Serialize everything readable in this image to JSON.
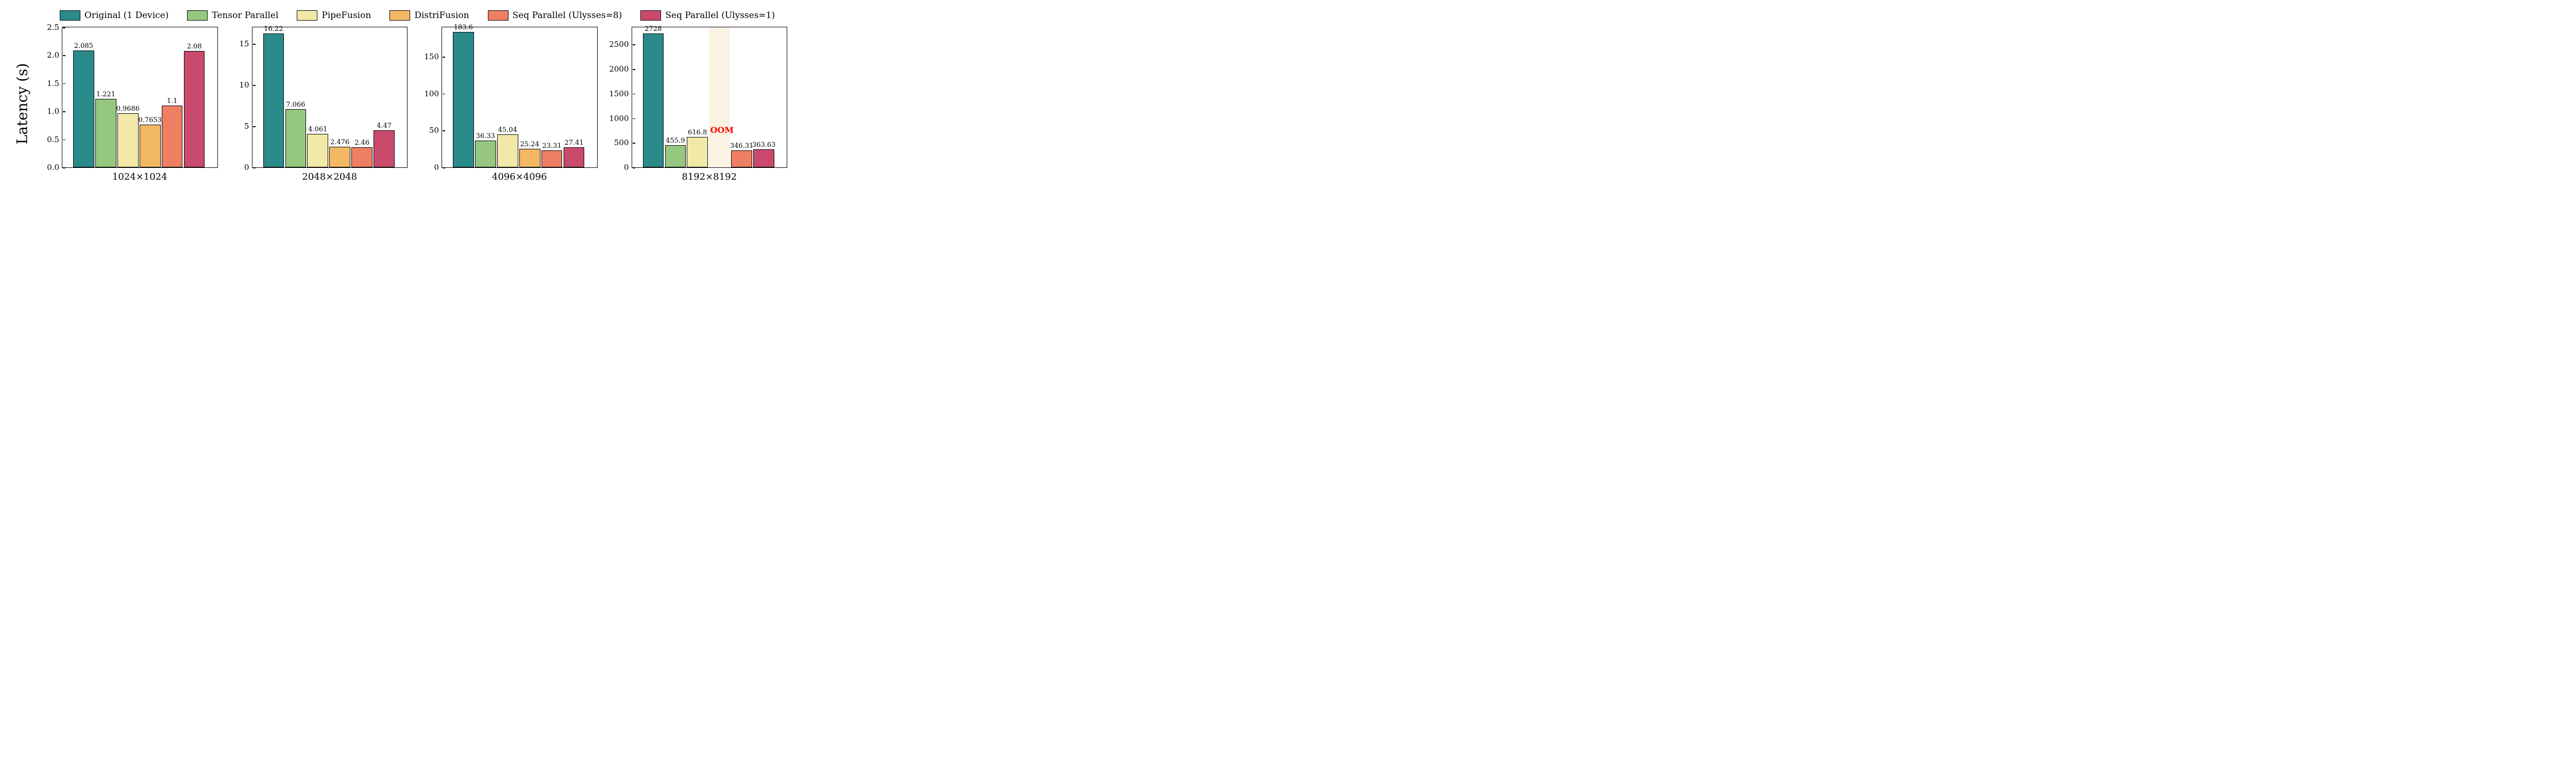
{
  "ylabel": "Latency (s)",
  "legend": [
    {
      "label": "Original (1 Device)",
      "color": "#2b8a8a"
    },
    {
      "label": "Tensor Parallel",
      "color": "#95c77e"
    },
    {
      "label": "PipeFusion",
      "color": "#f2e8a8"
    },
    {
      "label": "DistriFusion",
      "color": "#f3b864"
    },
    {
      "label": "Seq Parallel (Ulysses=8)",
      "color": "#ee7f63"
    },
    {
      "label": "Seq Parallel (Ulysses=1)",
      "color": "#c94a6d"
    }
  ],
  "bar_style": {
    "count": 6,
    "width_pct": 13.5,
    "gap_pct": 0.8,
    "left_margin_pct": 7.0
  },
  "oom_color": "#ff0000",
  "oom_band_color": "#faf3e3",
  "panels": [
    {
      "xlabel": "1024×1024",
      "ymax": 2.5,
      "yticks": [
        0.0,
        0.5,
        1.0,
        1.5,
        2.0,
        2.5
      ],
      "ytick_labels": [
        "0.0",
        "0.5",
        "1.0",
        "1.5",
        "2.0",
        "2.5"
      ],
      "bars": [
        {
          "value": 2.085,
          "label": "2.085"
        },
        {
          "value": 1.221,
          "label": "1.221"
        },
        {
          "value": 0.9686,
          "label": "0.9686"
        },
        {
          "value": 0.7653,
          "label": "0.7653"
        },
        {
          "value": 1.1,
          "label": "1.1"
        },
        {
          "value": 2.08,
          "label": "2.08"
        }
      ]
    },
    {
      "xlabel": "2048×2048",
      "ymax": 17,
      "yticks": [
        0,
        5,
        10,
        15
      ],
      "ytick_labels": [
        "0",
        "5",
        "10",
        "15"
      ],
      "bars": [
        {
          "value": 16.22,
          "label": "16.22"
        },
        {
          "value": 7.066,
          "label": "7.066"
        },
        {
          "value": 4.061,
          "label": "4.061"
        },
        {
          "value": 2.476,
          "label": "2.476"
        },
        {
          "value": 2.46,
          "label": "2.46"
        },
        {
          "value": 4.47,
          "label": "4.47"
        }
      ]
    },
    {
      "xlabel": "4096×4096",
      "ymax": 190,
      "yticks": [
        0,
        50,
        100,
        150
      ],
      "ytick_labels": [
        "0",
        "50",
        "100",
        "150"
      ],
      "bars": [
        {
          "value": 183.6,
          "label": "183.6"
        },
        {
          "value": 36.33,
          "label": "36.33"
        },
        {
          "value": 45.04,
          "label": "45.04"
        },
        {
          "value": 25.24,
          "label": "25.24"
        },
        {
          "value": 23.31,
          "label": "23.31"
        },
        {
          "value": 27.41,
          "label": "27.41"
        }
      ]
    },
    {
      "xlabel": "8192×8192",
      "ymax": 2850,
      "yticks": [
        0,
        500,
        1000,
        1500,
        2000,
        2500
      ],
      "ytick_labels": [
        "0",
        "500",
        "1000",
        "1500",
        "2000",
        "2500"
      ],
      "bars": [
        {
          "value": 2728,
          "label": "2728"
        },
        {
          "value": 455.9,
          "label": "455.9"
        },
        {
          "value": 616.8,
          "label": "616.8"
        },
        {
          "value": null,
          "label": "OOM",
          "oom": true
        },
        {
          "value": 346.31,
          "label": "346.31"
        },
        {
          "value": 363.63,
          "label": "363.63"
        }
      ]
    }
  ]
}
